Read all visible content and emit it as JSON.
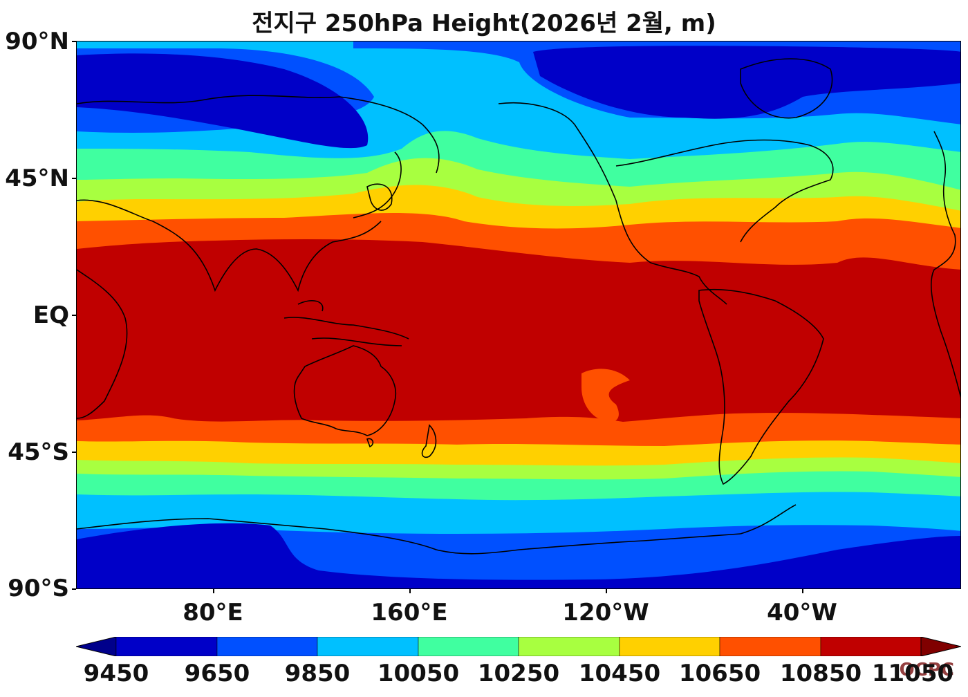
{
  "title": "전지구 250hPa Height(2026년 2월, m)",
  "watermark": "OCPC",
  "y_axis": [
    "90°N",
    "45°N",
    "EQ",
    "45°S",
    "90°S"
  ],
  "x_axis": [
    "80°E",
    "160°E",
    "120°W",
    "40°W"
  ],
  "colorbar": {
    "ticks": [
      "9450",
      "9650",
      "9850",
      "10050",
      "10250",
      "10450",
      "10650",
      "10850",
      "11050"
    ],
    "colors": [
      "#00008b",
      "#0000c8",
      "#0050ff",
      "#00c0ff",
      "#40ffa0",
      "#a8ff40",
      "#ffd000",
      "#ff5000",
      "#c00000",
      "#800000"
    ]
  }
}
